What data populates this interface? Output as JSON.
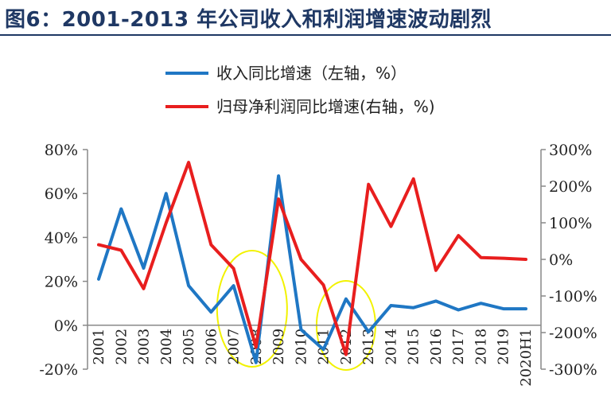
{
  "page": {
    "title": "图6：2001-2013 年公司收入和利润增速波动剧烈"
  },
  "chart_data": {
    "type": "line",
    "title": "",
    "x": [
      "2001",
      "2002",
      "2003",
      "2004",
      "2005",
      "2006",
      "2007",
      "2008",
      "2009",
      "2010",
      "2011",
      "2012",
      "2013",
      "2014",
      "2015",
      "2016",
      "2017",
      "2018",
      "2019",
      "2020H1"
    ],
    "series": [
      {
        "name": "收入同比增速（左轴，%）",
        "axis": "left",
        "color": "#1f77c4",
        "values": [
          21,
          53,
          26,
          60,
          18,
          6,
          18,
          -17,
          68,
          -2,
          -11,
          12,
          -3,
          9,
          8,
          11,
          7,
          10,
          7.5,
          7.5
        ]
      },
      {
        "name": "归母净利润同比增速(右轴，%)",
        "axis": "right",
        "color": "#e81e1e",
        "values": [
          40,
          25,
          -80,
          100,
          265,
          40,
          -25,
          -240,
          165,
          0,
          -70,
          -260,
          205,
          90,
          220,
          -30,
          65,
          5,
          3,
          0
        ]
      }
    ],
    "y_left": {
      "min": -20,
      "max": 80,
      "ticks": [
        "-20%",
        "0%",
        "20%",
        "40%",
        "60%",
        "80%"
      ],
      "tick_values": [
        -20,
        0,
        20,
        40,
        60,
        80
      ]
    },
    "y_right": {
      "min": -300,
      "max": 300,
      "ticks": [
        "-300%",
        "-200%",
        "-100%",
        "0%",
        "100%",
        "200%",
        "300%"
      ],
      "tick_values": [
        -300,
        -200,
        -100,
        0,
        100,
        200,
        300
      ]
    },
    "annotations": [
      {
        "type": "ellipse",
        "color": "#f2f200",
        "around": "2008"
      },
      {
        "type": "ellipse",
        "color": "#f2f200",
        "around": "2012"
      }
    ],
    "grid": false,
    "legend_position": "top-center"
  }
}
